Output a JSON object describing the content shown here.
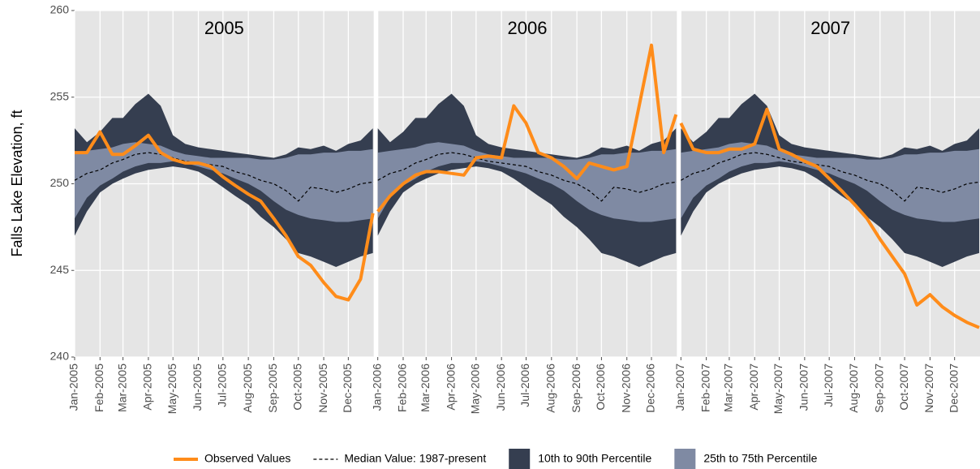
{
  "chart_data": [
    {
      "type": "line",
      "title": "2005",
      "ylabel": "Falls Lake Elevation, ft",
      "x": [
        0,
        15,
        31,
        46,
        59,
        74,
        90,
        105,
        120,
        135,
        151,
        166,
        181,
        196,
        212,
        227,
        243,
        258,
        273,
        288,
        304,
        319,
        334,
        349,
        364
      ],
      "xlim": [
        0,
        365
      ],
      "xticks": [
        {
          "value": 0,
          "label": "Jan-2005"
        },
        {
          "value": 31,
          "label": "Feb-2005"
        },
        {
          "value": 59,
          "label": "Mar-2005"
        },
        {
          "value": 90,
          "label": "Apr-2005"
        },
        {
          "value": 120,
          "label": "May-2005"
        },
        {
          "value": 151,
          "label": "Jun-2005"
        },
        {
          "value": 181,
          "label": "Jul-2005"
        },
        {
          "value": 212,
          "label": "Aug-2005"
        },
        {
          "value": 243,
          "label": "Sep-2005"
        },
        {
          "value": 273,
          "label": "Oct-2005"
        },
        {
          "value": 304,
          "label": "Nov-2005"
        },
        {
          "value": 334,
          "label": "Dec-2005"
        }
      ],
      "ylim": [
        240,
        260
      ],
      "yticks": [
        240,
        245,
        250,
        255,
        260
      ],
      "grid": true,
      "bands": [
        {
          "name": "10th to 90th Percentile",
          "color": "#353e50",
          "upper": [
            253.2,
            252.4,
            253,
            253.8,
            253.8,
            254.6,
            255.2,
            254.5,
            252.8,
            252.3,
            252.1,
            252,
            251.9,
            251.8,
            251.7,
            251.6,
            251.5,
            251.7,
            252.1,
            252,
            252.2,
            251.9,
            252.3,
            252.5,
            253.2
          ],
          "lower": [
            247,
            248.4,
            249.5,
            250,
            250.3,
            250.6,
            250.8,
            250.9,
            251,
            250.9,
            250.7,
            250.3,
            249.8,
            249.3,
            248.8,
            248.1,
            247.5,
            246.8,
            246,
            245.8,
            245.5,
            245.2,
            245.5,
            245.8,
            246
          ]
        },
        {
          "name": "25th to 75th Percentile",
          "color": "#7f8aa3",
          "upper": [
            251.8,
            251.9,
            252,
            252.1,
            252.3,
            252.4,
            252.3,
            252.2,
            251.9,
            251.7,
            251.6,
            251.5,
            251.5,
            251.5,
            251.5,
            251.4,
            251.4,
            251.5,
            251.7,
            251.7,
            251.8,
            251.8,
            251.9,
            251.9,
            252
          ],
          "lower": [
            248,
            249.2,
            249.9,
            250.3,
            250.7,
            251,
            251.2,
            251.2,
            251.3,
            251.2,
            251,
            250.8,
            250.6,
            250.3,
            250,
            249.6,
            249,
            248.5,
            248.2,
            248,
            247.9,
            247.8,
            247.8,
            247.9,
            248
          ]
        }
      ],
      "series": [
        {
          "name": "Observed Values",
          "color": "#ff8c1a",
          "values": [
            251.8,
            251.8,
            253,
            251.7,
            251.7,
            252.2,
            252.8,
            251.8,
            251.4,
            251.2,
            251.2,
            251,
            250.4,
            249.9,
            249.4,
            249,
            248,
            247,
            245.8,
            245.3,
            244.3,
            243.5,
            243.3,
            244.5,
            248.3
          ]
        },
        {
          "name": "Median Value: 1987-present",
          "color": "#000000",
          "dashed": true,
          "values": [
            250.2,
            250.6,
            250.8,
            251.2,
            251.4,
            251.7,
            251.8,
            251.7,
            251.5,
            251.3,
            251.2,
            251.1,
            251,
            250.7,
            250.5,
            250.2,
            250,
            249.6,
            249,
            249.8,
            249.7,
            249.5,
            249.7,
            250,
            250.1
          ]
        }
      ]
    },
    {
      "type": "line",
      "title": "2006",
      "x": [
        0,
        15,
        31,
        46,
        59,
        74,
        90,
        105,
        120,
        135,
        151,
        166,
        181,
        196,
        212,
        227,
        243,
        258,
        273,
        288,
        304,
        319,
        334,
        349,
        364
      ],
      "xlim": [
        0,
        365
      ],
      "xticks": [
        {
          "value": 0,
          "label": "Jan-2006"
        },
        {
          "value": 31,
          "label": "Feb-2006"
        },
        {
          "value": 59,
          "label": "Mar-2006"
        },
        {
          "value": 90,
          "label": "Apr-2006"
        },
        {
          "value": 120,
          "label": "May-2006"
        },
        {
          "value": 151,
          "label": "Jun-2006"
        },
        {
          "value": 181,
          "label": "Jul-2006"
        },
        {
          "value": 212,
          "label": "Aug-2006"
        },
        {
          "value": 243,
          "label": "Sep-2006"
        },
        {
          "value": 273,
          "label": "Oct-2006"
        },
        {
          "value": 304,
          "label": "Nov-2006"
        },
        {
          "value": 334,
          "label": "Dec-2006"
        }
      ],
      "ylim": [
        240,
        260
      ],
      "yticks": [
        240,
        245,
        250,
        255,
        260
      ],
      "grid": true,
      "bands": [
        {
          "color": "#353e50",
          "upper": [
            253.2,
            252.4,
            253,
            253.8,
            253.8,
            254.6,
            255.2,
            254.5,
            252.8,
            252.3,
            252.1,
            252,
            251.9,
            251.8,
            251.7,
            251.6,
            251.5,
            251.7,
            252.1,
            252,
            252.2,
            251.9,
            252.3,
            252.5,
            253.2
          ],
          "lower": [
            247,
            248.4,
            249.5,
            250,
            250.3,
            250.6,
            250.8,
            250.9,
            251,
            250.9,
            250.7,
            250.3,
            249.8,
            249.3,
            248.8,
            248.1,
            247.5,
            246.8,
            246,
            245.8,
            245.5,
            245.2,
            245.5,
            245.8,
            246
          ]
        },
        {
          "color": "#7f8aa3",
          "upper": [
            251.8,
            251.9,
            252,
            252.1,
            252.3,
            252.4,
            252.3,
            252.2,
            251.9,
            251.7,
            251.6,
            251.5,
            251.5,
            251.5,
            251.5,
            251.4,
            251.4,
            251.5,
            251.7,
            251.7,
            251.8,
            251.8,
            251.9,
            251.9,
            252
          ],
          "lower": [
            248,
            249.2,
            249.9,
            250.3,
            250.7,
            251,
            251.2,
            251.2,
            251.3,
            251.2,
            251,
            250.8,
            250.6,
            250.3,
            250,
            249.6,
            249,
            248.5,
            248.2,
            248,
            247.9,
            247.8,
            247.8,
            247.9,
            248
          ]
        }
      ],
      "series": [
        {
          "color": "#ff8c1a",
          "values": [
            248.4,
            249.3,
            250,
            250.5,
            250.7,
            250.7,
            250.6,
            250.5,
            251.5,
            251.6,
            251.5,
            254.5,
            253.5,
            251.8,
            251.5,
            251,
            250.3,
            251.2,
            251,
            250.8,
            251,
            254.5,
            258,
            251.8,
            254
          ]
        },
        {
          "color": "#000000",
          "dashed": true,
          "values": [
            250.2,
            250.6,
            250.8,
            251.2,
            251.4,
            251.7,
            251.8,
            251.7,
            251.5,
            251.3,
            251.2,
            251.1,
            251,
            250.7,
            250.5,
            250.2,
            250,
            249.6,
            249,
            249.8,
            249.7,
            249.5,
            249.7,
            250,
            250.1
          ]
        }
      ]
    },
    {
      "type": "line",
      "title": "2007",
      "x": [
        0,
        15,
        31,
        46,
        59,
        74,
        90,
        105,
        120,
        135,
        151,
        166,
        181,
        196,
        212,
        227,
        243,
        258,
        273,
        288,
        304,
        319,
        334,
        349,
        364
      ],
      "xlim": [
        0,
        365
      ],
      "xticks": [
        {
          "value": 0,
          "label": "Jan-2007"
        },
        {
          "value": 31,
          "label": "Feb-2007"
        },
        {
          "value": 59,
          "label": "Mar-2007"
        },
        {
          "value": 90,
          "label": "Apr-2007"
        },
        {
          "value": 120,
          "label": "May-2007"
        },
        {
          "value": 151,
          "label": "Jun-2007"
        },
        {
          "value": 181,
          "label": "Jul-2007"
        },
        {
          "value": 212,
          "label": "Aug-2007"
        },
        {
          "value": 243,
          "label": "Sep-2007"
        },
        {
          "value": 273,
          "label": "Oct-2007"
        },
        {
          "value": 304,
          "label": "Nov-2007"
        },
        {
          "value": 334,
          "label": "Dec-2007"
        }
      ],
      "ylim": [
        240,
        260
      ],
      "yticks": [
        240,
        245,
        250,
        255,
        260
      ],
      "grid": true,
      "bands": [
        {
          "color": "#353e50",
          "upper": [
            253.2,
            252.4,
            253,
            253.8,
            253.8,
            254.6,
            255.2,
            254.5,
            252.8,
            252.3,
            252.1,
            252,
            251.9,
            251.8,
            251.7,
            251.6,
            251.5,
            251.7,
            252.1,
            252,
            252.2,
            251.9,
            252.3,
            252.5,
            253.2
          ],
          "lower": [
            247,
            248.4,
            249.5,
            250,
            250.3,
            250.6,
            250.8,
            250.9,
            251,
            250.9,
            250.7,
            250.3,
            249.8,
            249.3,
            248.8,
            248.1,
            247.5,
            246.8,
            246,
            245.8,
            245.5,
            245.2,
            245.5,
            245.8,
            246
          ]
        },
        {
          "color": "#7f8aa3",
          "upper": [
            251.8,
            251.9,
            252,
            252.1,
            252.3,
            252.4,
            252.3,
            252.2,
            251.9,
            251.7,
            251.6,
            251.5,
            251.5,
            251.5,
            251.5,
            251.4,
            251.4,
            251.5,
            251.7,
            251.7,
            251.8,
            251.8,
            251.9,
            251.9,
            252
          ],
          "lower": [
            248,
            249.2,
            249.9,
            250.3,
            250.7,
            251,
            251.2,
            251.2,
            251.3,
            251.2,
            251,
            250.8,
            250.6,
            250.3,
            250,
            249.6,
            249,
            248.5,
            248.2,
            248,
            247.9,
            247.8,
            247.8,
            247.9,
            248
          ]
        }
      ],
      "series": [
        {
          "color": "#ff8c1a",
          "values": [
            253.5,
            252,
            251.8,
            251.8,
            252,
            252,
            252.3,
            254.3,
            252,
            251.7,
            251.3,
            251,
            250.3,
            249.6,
            248.8,
            248,
            246.8,
            245.8,
            244.8,
            243,
            243.6,
            242.9,
            242.4,
            242,
            241.7
          ]
        },
        {
          "color": "#000000",
          "dashed": true,
          "values": [
            250.2,
            250.6,
            250.8,
            251.2,
            251.4,
            251.7,
            251.8,
            251.7,
            251.5,
            251.3,
            251.2,
            251.1,
            251,
            250.7,
            250.5,
            250.2,
            250,
            249.6,
            249,
            249.8,
            249.7,
            249.5,
            249.7,
            250,
            250.1
          ]
        }
      ]
    }
  ]
}
